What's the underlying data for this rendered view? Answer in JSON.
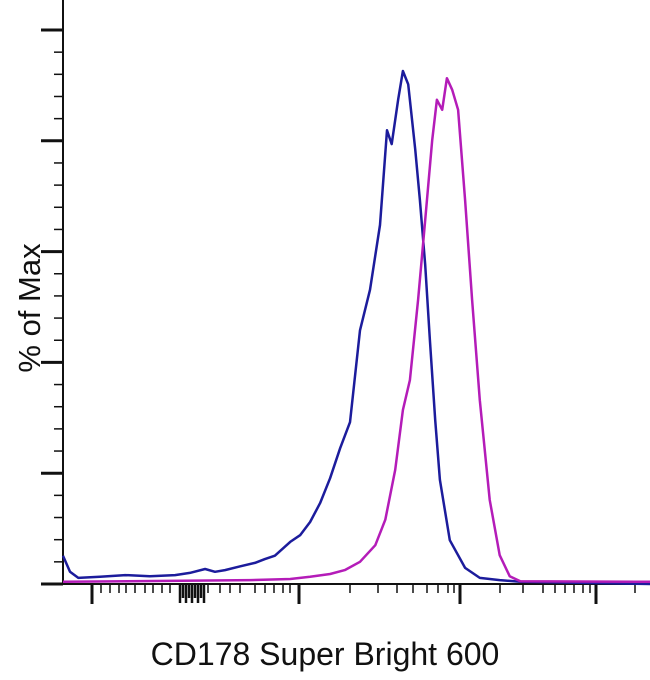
{
  "chart_data": {
    "type": "line",
    "title": "",
    "xlabel": "CD178 Super Bright 600",
    "ylabel": "% of Max",
    "x_scale": "biexponential (unlabeled channels)",
    "xlim": [
      0,
      1000
    ],
    "ylim": [
      0,
      100
    ],
    "grid": false,
    "legend": "none",
    "series": [
      {
        "color": "#1c1c9c",
        "x": [
          0,
          12,
          26,
          63,
          106,
          148,
          191,
          216,
          242,
          259,
          276,
          302,
          327,
          344,
          361,
          387,
          404,
          421,
          438,
          455,
          472,
          489,
          506,
          523,
          540,
          552,
          560,
          571,
          579,
          588,
          600,
          608,
          617,
          625,
          634,
          642,
          659,
          685,
          710,
          744,
          779,
          1000
        ],
        "y": [
          5.1,
          2.2,
          1.1,
          1.3,
          1.6,
          1.4,
          1.6,
          2.0,
          2.7,
          2.2,
          2.5,
          3.2,
          3.8,
          4.5,
          5.1,
          7.6,
          8.8,
          11.2,
          14.6,
          19.1,
          24.5,
          29.2,
          45.8,
          53.1,
          64.8,
          81.9,
          79.4,
          87.5,
          92.6,
          90.2,
          78.5,
          69.3,
          57.6,
          44.0,
          29.6,
          18.8,
          7.9,
          2.9,
          1.1,
          0.7,
          0.4,
          0
        ]
      },
      {
        "color": "#b41cb8",
        "x": [
          0,
          319,
          387,
          421,
          455,
          480,
          506,
          532,
          549,
          566,
          579,
          591,
          605,
          617,
          629,
          637,
          646,
          654,
          663,
          673,
          685,
          697,
          710,
          727,
          744,
          761,
          779,
          1000
        ],
        "y": [
          0.4,
          0.7,
          0.9,
          1.3,
          1.8,
          2.5,
          4.0,
          7.0,
          11.6,
          20.6,
          31.4,
          36.8,
          51.3,
          65.7,
          80.1,
          87.4,
          85.6,
          91.3,
          89.2,
          85.6,
          69.3,
          51.3,
          33.2,
          15.2,
          5.2,
          1.4,
          0.5,
          0.4
        ]
      }
    ]
  }
}
